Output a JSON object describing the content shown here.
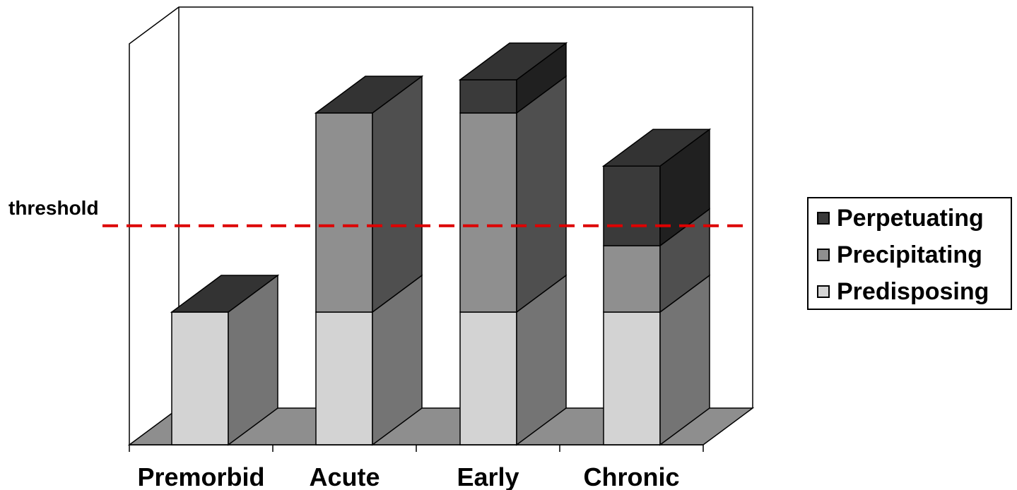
{
  "chart_data": {
    "type": "bar",
    "stacked": true,
    "three_d": true,
    "categories": [
      "Premorbid",
      "Acute",
      "Early",
      "Chronic"
    ],
    "series": [
      {
        "name": "Predisposing",
        "values": [
          2,
          2,
          2,
          2
        ],
        "color": "#d3d3d3"
      },
      {
        "name": "Precipitating",
        "values": [
          0,
          3,
          3,
          1
        ],
        "color": "#8f8f8f"
      },
      {
        "name": "Perpetuating",
        "values": [
          0,
          0,
          0.5,
          1.2
        ],
        "color": "#3a3a3a"
      }
    ],
    "threshold": {
      "label": "threshold",
      "value": 3.3,
      "color": "#dd0000",
      "style": "dashed"
    },
    "ylim": [
      0,
      6
    ],
    "grid": false,
    "legend_position": "right"
  }
}
